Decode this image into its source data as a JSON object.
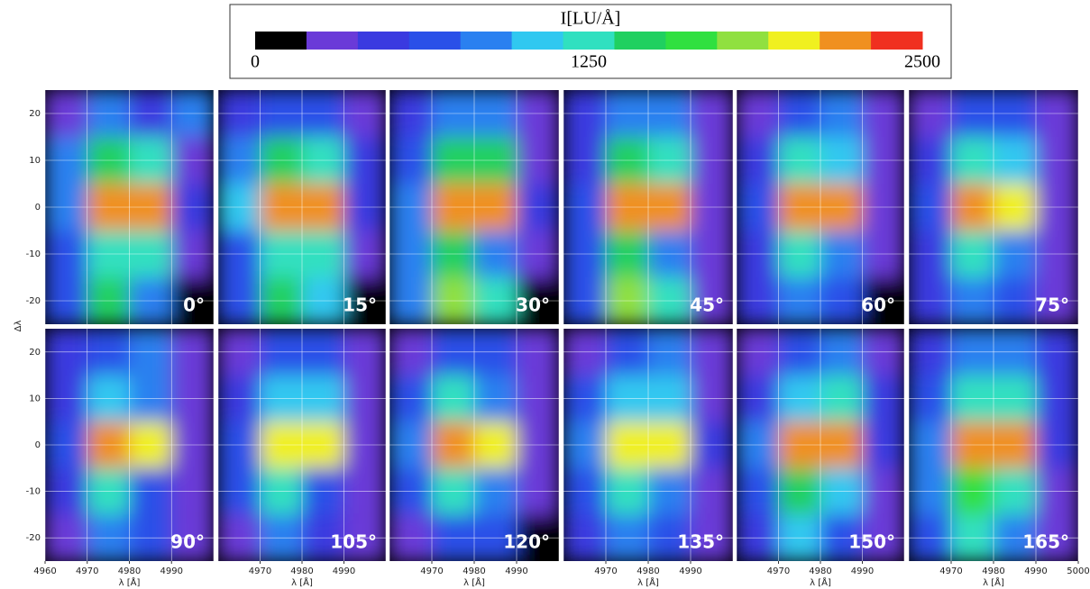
{
  "chart_data": {
    "type": "heatmap",
    "colorbar_title": "I[LU/Å]",
    "clim": [
      0,
      2500
    ],
    "cticks": [
      0,
      1250,
      2500
    ],
    "colorscale": [
      "#000000",
      "#6a3ad8",
      "#3a3ae0",
      "#2a50e8",
      "#2a80f0",
      "#30c8f0",
      "#30e0c0",
      "#20d060",
      "#30e040",
      "#90e040",
      "#f0f020",
      "#f09020",
      "#f03020"
    ],
    "y_label": "Δλ",
    "x_label": "λ [Å]",
    "xlim": [
      4960,
      5000
    ],
    "xticks": [
      4960,
      4970,
      4980,
      4990,
      5000
    ],
    "ylim": [
      -25,
      25
    ],
    "yticks": [
      -20,
      -10,
      0,
      10,
      20
    ],
    "x": [
      4965,
      4975,
      4985,
      4995
    ],
    "y": [
      20,
      10,
      0,
      -10,
      -20
    ],
    "grid": true,
    "panels": [
      {
        "label": "0°",
        "z": [
          [
            300,
            800,
            400,
            900
          ],
          [
            800,
            1500,
            1300,
            300
          ],
          [
            900,
            2300,
            2300,
            400
          ],
          [
            600,
            1300,
            1200,
            200
          ],
          [
            600,
            1400,
            900,
            100
          ]
        ]
      },
      {
        "label": "15°",
        "z": [
          [
            400,
            700,
            600,
            300
          ],
          [
            800,
            1500,
            1300,
            400
          ],
          [
            1000,
            2300,
            2200,
            500
          ],
          [
            700,
            1300,
            1200,
            300
          ],
          [
            700,
            1500,
            1000,
            100
          ]
        ]
      },
      {
        "label": "30°",
        "z": [
          [
            400,
            900,
            900,
            300
          ],
          [
            600,
            1500,
            1400,
            300
          ],
          [
            800,
            2300,
            2200,
            400
          ],
          [
            800,
            1500,
            900,
            200
          ],
          [
            800,
            1900,
            1200,
            100
          ]
        ]
      },
      {
        "label": "45°",
        "z": [
          [
            500,
            900,
            900,
            200
          ],
          [
            500,
            1400,
            1300,
            300
          ],
          [
            700,
            2200,
            2300,
            300
          ],
          [
            600,
            1500,
            900,
            200
          ],
          [
            600,
            1800,
            1200,
            200
          ]
        ]
      },
      {
        "label": "60°",
        "z": [
          [
            300,
            600,
            800,
            200
          ],
          [
            400,
            1200,
            1100,
            200
          ],
          [
            700,
            2200,
            2200,
            300
          ],
          [
            500,
            1300,
            800,
            200
          ],
          [
            400,
            900,
            600,
            100
          ]
        ]
      },
      {
        "label": "75°",
        "z": [
          [
            300,
            600,
            700,
            300
          ],
          [
            400,
            1200,
            1100,
            300
          ],
          [
            700,
            2200,
            2100,
            300
          ],
          [
            500,
            1300,
            800,
            300
          ],
          [
            500,
            900,
            600,
            200
          ]
        ]
      },
      {
        "label": "90°",
        "z": [
          [
            400,
            600,
            800,
            200
          ],
          [
            500,
            1100,
            900,
            200
          ],
          [
            700,
            2200,
            2100,
            300
          ],
          [
            500,
            1300,
            700,
            300
          ],
          [
            300,
            800,
            600,
            300
          ]
        ]
      },
      {
        "label": "105°",
        "z": [
          [
            300,
            700,
            700,
            200
          ],
          [
            500,
            1100,
            1000,
            300
          ],
          [
            700,
            2100,
            2100,
            300
          ],
          [
            600,
            1300,
            700,
            200
          ],
          [
            300,
            800,
            500,
            200
          ]
        ]
      },
      {
        "label": "120°",
        "z": [
          [
            300,
            700,
            600,
            200
          ],
          [
            600,
            1200,
            900,
            300
          ],
          [
            800,
            2200,
            2000,
            300
          ],
          [
            600,
            1200,
            800,
            200
          ],
          [
            300,
            700,
            600,
            100
          ]
        ]
      },
      {
        "label": "135°",
        "z": [
          [
            300,
            700,
            800,
            300
          ],
          [
            600,
            1100,
            1000,
            300
          ],
          [
            800,
            2100,
            2100,
            400
          ],
          [
            600,
            1300,
            900,
            200
          ],
          [
            400,
            900,
            600,
            200
          ]
        ]
      },
      {
        "label": "150°",
        "z": [
          [
            300,
            700,
            800,
            300
          ],
          [
            500,
            1100,
            1200,
            400
          ],
          [
            900,
            2200,
            2200,
            500
          ],
          [
            700,
            1500,
            1100,
            300
          ],
          [
            500,
            1100,
            700,
            300
          ]
        ]
      },
      {
        "label": "165°",
        "z": [
          [
            500,
            900,
            900,
            400
          ],
          [
            700,
            1300,
            1300,
            400
          ],
          [
            900,
            2300,
            2300,
            500
          ],
          [
            800,
            1700,
            1200,
            300
          ],
          [
            600,
            1300,
            900,
            300
          ]
        ]
      }
    ]
  }
}
